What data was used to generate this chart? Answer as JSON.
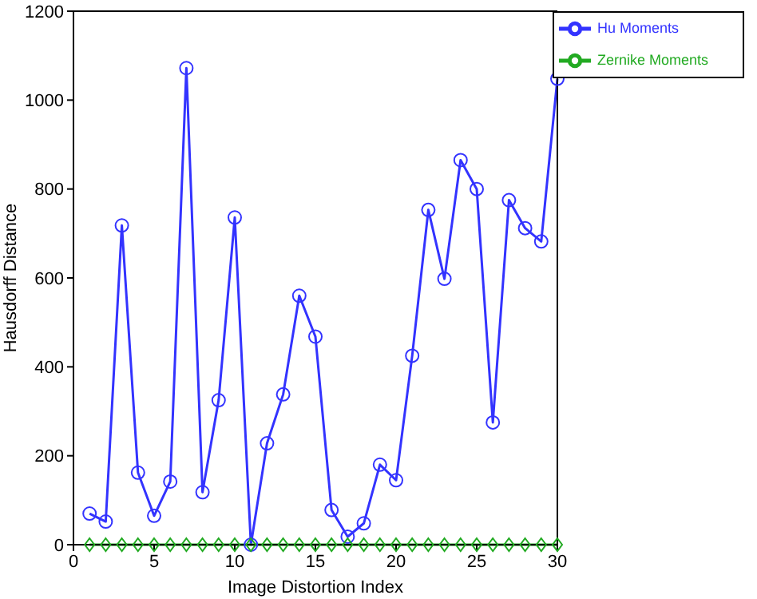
{
  "chart_data": {
    "type": "line",
    "xlabel": "Image Distortion Index",
    "ylabel": "Hausdorff Distance",
    "x": [
      1,
      2,
      3,
      4,
      5,
      6,
      7,
      8,
      9,
      10,
      11,
      12,
      13,
      14,
      15,
      16,
      17,
      18,
      19,
      20,
      21,
      22,
      23,
      24,
      25,
      26,
      27,
      28,
      29,
      30
    ],
    "series": [
      {
        "name": "Hu Moments",
        "color": "#3333ff",
        "marker": "circle",
        "values": [
          70,
          52,
          718,
          162,
          65,
          142,
          1072,
          118,
          325,
          736,
          0,
          228,
          338,
          560,
          468,
          78,
          18,
          48,
          180,
          145,
          425,
          753,
          598,
          865,
          800,
          275,
          775,
          712,
          682,
          1048
        ]
      },
      {
        "name": "Zernike Moments",
        "color": "#22aa22",
        "marker": "diamond",
        "values": [
          0,
          0,
          0,
          0,
          0,
          0,
          0,
          0,
          0,
          0,
          0,
          0,
          0,
          0,
          0,
          0,
          0,
          0,
          0,
          0,
          0,
          0,
          0,
          0,
          0,
          0,
          0,
          0,
          0,
          0
        ]
      }
    ],
    "xlim": [
      0,
      30
    ],
    "xticks": [
      0,
      5,
      10,
      15,
      20,
      25,
      30
    ],
    "ylim": [
      0,
      1200
    ],
    "yticks": [
      0,
      200,
      400,
      600,
      800,
      1000,
      1200
    ],
    "grid": false,
    "legend": "top right",
    "line_style": "solid"
  }
}
